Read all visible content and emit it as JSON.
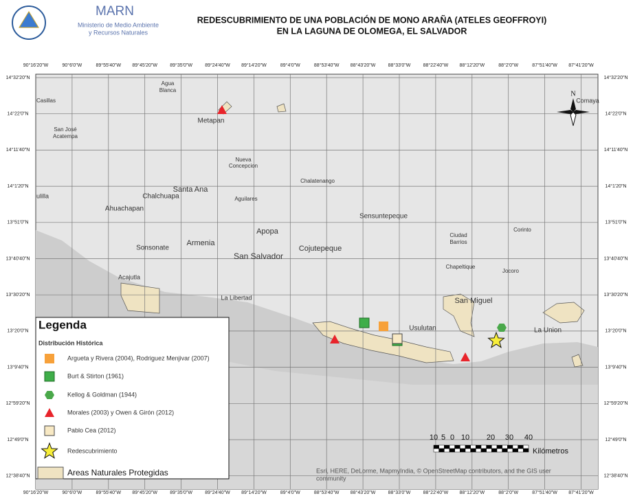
{
  "header": {
    "logo_name": "MARN",
    "ministry": [
      "Ministerio de Medio Ambiente",
      "y Recursos Naturales"
    ],
    "title": [
      "REDESCUBRIMIENTO DE UNA POBLACIÓN DE MONO ARAÑA (ATELES GEOFFROYI)",
      "EN LA LAGUNA DE OLOMEGA, EL SALVADOR"
    ]
  },
  "map": {
    "longitudes": [
      "90°16'20\"W",
      "90°6'0\"W",
      "89°55'40\"W",
      "89°45'20\"W",
      "89°35'0\"W",
      "89°24'40\"W",
      "89°14'20\"W",
      "89°4'0\"W",
      "88°53'40\"W",
      "88°43'20\"W",
      "88°33'0\"W",
      "88°22'40\"W",
      "88°12'20\"W",
      "88°2'0\"W",
      "87°51'40\"W",
      "87°41'20\"W"
    ],
    "latitudes": [
      "14°32'20\"N",
      "14°22'0\"N",
      "14°11'40\"N",
      "14°1'20\"N",
      "13°51'0\"N",
      "13°40'40\"N",
      "13°30'20\"N",
      "13°20'0\"N",
      "13°9'40\"N",
      "12°59'20\"N",
      "12°49'0\"N",
      "12°38'40\"N"
    ],
    "places": [
      "Casillas",
      "Agua",
      "Blanca",
      "Metapan",
      "San José",
      "Acatempa",
      "Nueva",
      "Concepcion",
      "Chalatenango",
      "Santa Ana",
      "Chalchuapa",
      "Aguilares",
      "Ahuachapan",
      "Sensuntepeque",
      "Apopa",
      "Armenia",
      "Sonsonate",
      "Cojutepeque",
      "San Salvador",
      "Ciudad",
      "Barrios",
      "Corinto",
      "Chapeltique",
      "Jocoro",
      "Acajutla",
      "La Libertad",
      "San Miguel",
      "Usulutan",
      "La Union",
      "Comaya",
      "ulilla"
    ],
    "north": "N",
    "scale": {
      "ticks": [
        "10",
        "5",
        "0",
        "10",
        "20",
        "30",
        "40"
      ],
      "unit": "Kilómetros"
    },
    "attribution": [
      "Esri, HERE, DeLorme, MapmyIndia, © OpenStreetMap contributors, and the GIS user",
      "community"
    ]
  },
  "legend": {
    "title": "Legenda",
    "subtitle": "Distribución Histórica",
    "items": [
      "Argueta y Rivera (2004), Rodriguez Menjivar (2007)",
      "Burt & Stirton (1961)",
      "Kellog & Goldman (1944)",
      "Morales (2003) y Owen & Girón (2012)",
      "Pablo Cea (2012)",
      "Redescubrimiento"
    ],
    "protected_areas": "Areas Naturales Protegidas"
  }
}
